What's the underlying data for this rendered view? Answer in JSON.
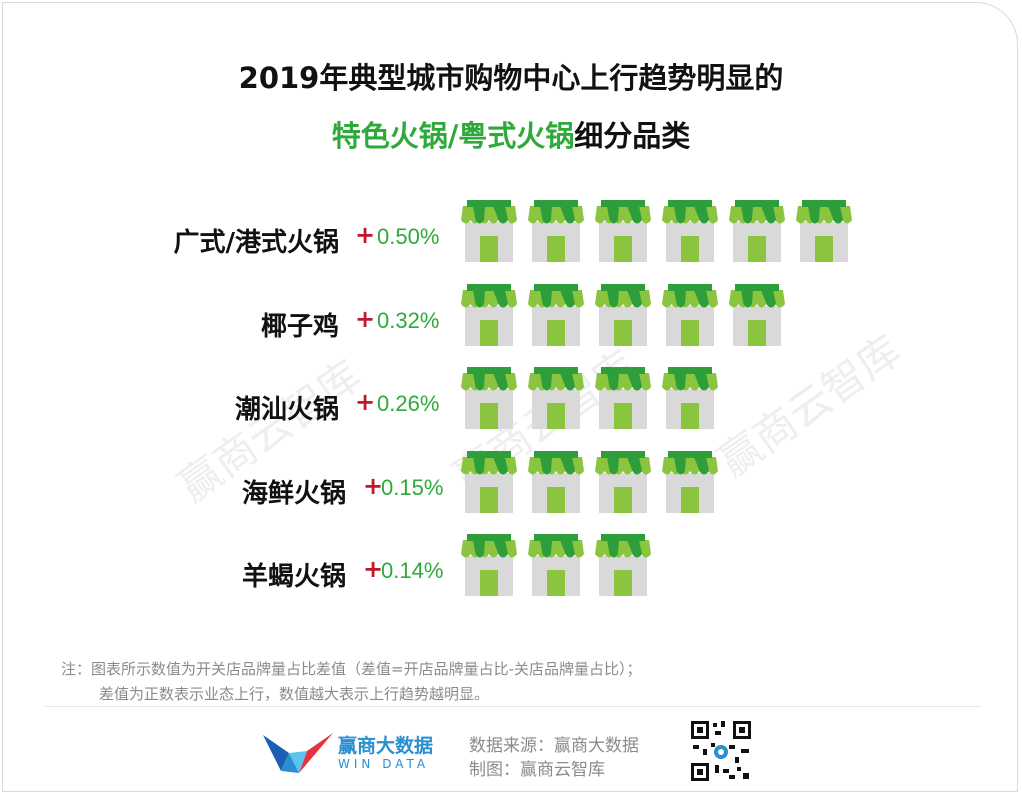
{
  "title_line1": "2019年典型城市购物中心上行趋势明显的",
  "title_line2_highlight": "特色火锅/粤式火锅",
  "title_line2_rest": "细分品类",
  "watermark": "赢商云智库",
  "plus_sign": "+",
  "chart_data": {
    "type": "pictogram",
    "title": "2019年典型城市购物中心上行趋势明显的特色火锅/粤式火锅细分品类",
    "categories": [
      "广式/港式火锅",
      "椰子鸡",
      "潮汕火锅",
      "海鲜火锅",
      "羊蝎火锅"
    ],
    "values": [
      0.5,
      0.32,
      0.26,
      0.15,
      0.14
    ],
    "value_labels": [
      "0.50%",
      "0.32%",
      "0.26%",
      "0.15%",
      "0.14%"
    ],
    "icon_counts": [
      6,
      5,
      4,
      4,
      3
    ],
    "unit": "%",
    "icon": "store-icon"
  },
  "colors": {
    "highlight_green": "#2eaa3a",
    "plus_red": "#c0182a",
    "awning_dark": "#2e9e3a",
    "awning_light": "#8bc53f",
    "wall": "#d9d9d9",
    "door": "#8bc53f"
  },
  "note_line1": "注：图表所示数值为开关店品牌量占比差值（差值=开店品牌量占比-关店品牌量占比）；",
  "note_line2": "差值为正数表示业态上行，数值越大表示上行趋势越明显。",
  "footer": {
    "logo_cn": "赢商大数据",
    "logo_en": "WIN DATA",
    "source": "数据来源：赢商大数据",
    "made_by": "制图：赢商云智库"
  }
}
